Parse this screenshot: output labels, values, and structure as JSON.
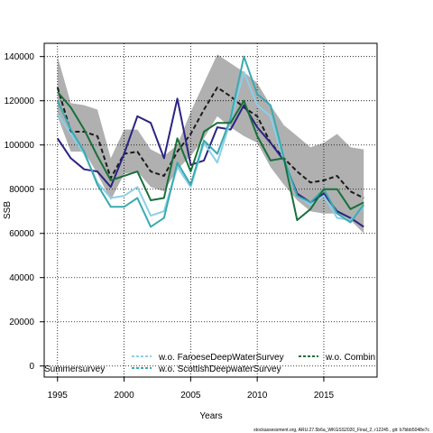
{
  "chart_data": {
    "type": "line",
    "xlabel": "Years",
    "ylabel": "SSB",
    "xlim": [
      1994,
      2019
    ],
    "ylim": [
      -5000,
      146000
    ],
    "xticks": [
      1995,
      2000,
      2005,
      2010,
      2015
    ],
    "yticks": [
      0,
      20000,
      40000,
      60000,
      80000,
      100000,
      120000,
      140000
    ],
    "grid": true,
    "legend_position": "bottom",
    "x": [
      1995,
      1996,
      1997,
      1998,
      1999,
      2000,
      2001,
      2002,
      2003,
      2004,
      2005,
      2006,
      2007,
      2008,
      2009,
      2010,
      2011,
      2012,
      2013,
      2014,
      2015,
      2016,
      2017,
      2018
    ],
    "band": {
      "color": "#b0b0b0",
      "upper": [
        140000,
        119000,
        118000,
        116000,
        94000,
        107000,
        107000,
        98000,
        95000,
        100000,
        115000,
        128000,
        141000,
        137000,
        133000,
        128000,
        118000,
        109000,
        104000,
        99000,
        101000,
        105000,
        99000,
        98000
      ],
      "lower": [
        113000,
        97000,
        97000,
        87000,
        75000,
        87000,
        88000,
        81000,
        79000,
        89000,
        95000,
        103000,
        113000,
        108000,
        104000,
        101000,
        90000,
        82000,
        75000,
        70000,
        69000,
        69000,
        66000,
        60000
      ]
    },
    "series": [
      {
        "name": "",
        "color": "#1a1a1a",
        "dash": "5,3",
        "width": 2,
        "values": [
          126000,
          106000,
          106000,
          104000,
          85000,
          96000,
          97000,
          88000,
          86000,
          97000,
          105000,
          116000,
          126000,
          122000,
          117000,
          113000,
          101000,
          94000,
          88000,
          83000,
          84000,
          86000,
          79000,
          76000
        ]
      },
      {
        "name": "",
        "color": "#2b2382",
        "dash": "",
        "width": 2,
        "values": [
          103000,
          94000,
          89000,
          88000,
          81000,
          96000,
          113000,
          110000,
          94000,
          121000,
          91000,
          93000,
          108000,
          107000,
          118000,
          108000,
          101000,
          93000,
          78000,
          74000,
          78000,
          70000,
          67000,
          63000
        ]
      },
      {
        "name": "w.o. FaroeseDeepWaterSurvey",
        "color": "#8ccfe8",
        "dash": "",
        "width": 2,
        "values": [
          114000,
          105000,
          96000,
          83000,
          76000,
          77000,
          81000,
          68000,
          70000,
          90000,
          81000,
          101000,
          92000,
          111000,
          133000,
          118000,
          113000,
          93000,
          77000,
          73000,
          77000,
          67000,
          66000,
          72000
        ]
      },
      {
        "name": "w.o. ScottishDeepwaterSurvey",
        "color": "#3aaab0",
        "dash": "",
        "width": 2,
        "values": [
          120000,
          107000,
          97000,
          82000,
          72000,
          72000,
          76000,
          63000,
          67000,
          92000,
          82000,
          102000,
          96000,
          112000,
          140000,
          123000,
          118000,
          94000,
          77000,
          74000,
          80000,
          69000,
          65000,
          73000
        ]
      },
      {
        "name": "w.o. CombinedSummersurvey",
        "color": "#18703a",
        "dash": "",
        "width": 2,
        "values": [
          124000,
          117000,
          107000,
          95000,
          84000,
          86000,
          88000,
          75000,
          76000,
          103000,
          88000,
          106000,
          110000,
          110000,
          120000,
          104000,
          93000,
          94000,
          66000,
          71000,
          80000,
          80000,
          71000,
          74000
        ]
      }
    ],
    "legend_label_a": "w.o. FaroeseDeepWaterSurvey",
    "legend_label_b": "w.o. ScottishDeepwaterSurvey",
    "legend_label_c": "w.o. Combin",
    "legend_label_d": "Summersurvey",
    "credit": "stockassessment.org, ARU.27.5b6a_WKGSS2020_Final_2, r12245 , git: b7bbb5048e7c"
  }
}
